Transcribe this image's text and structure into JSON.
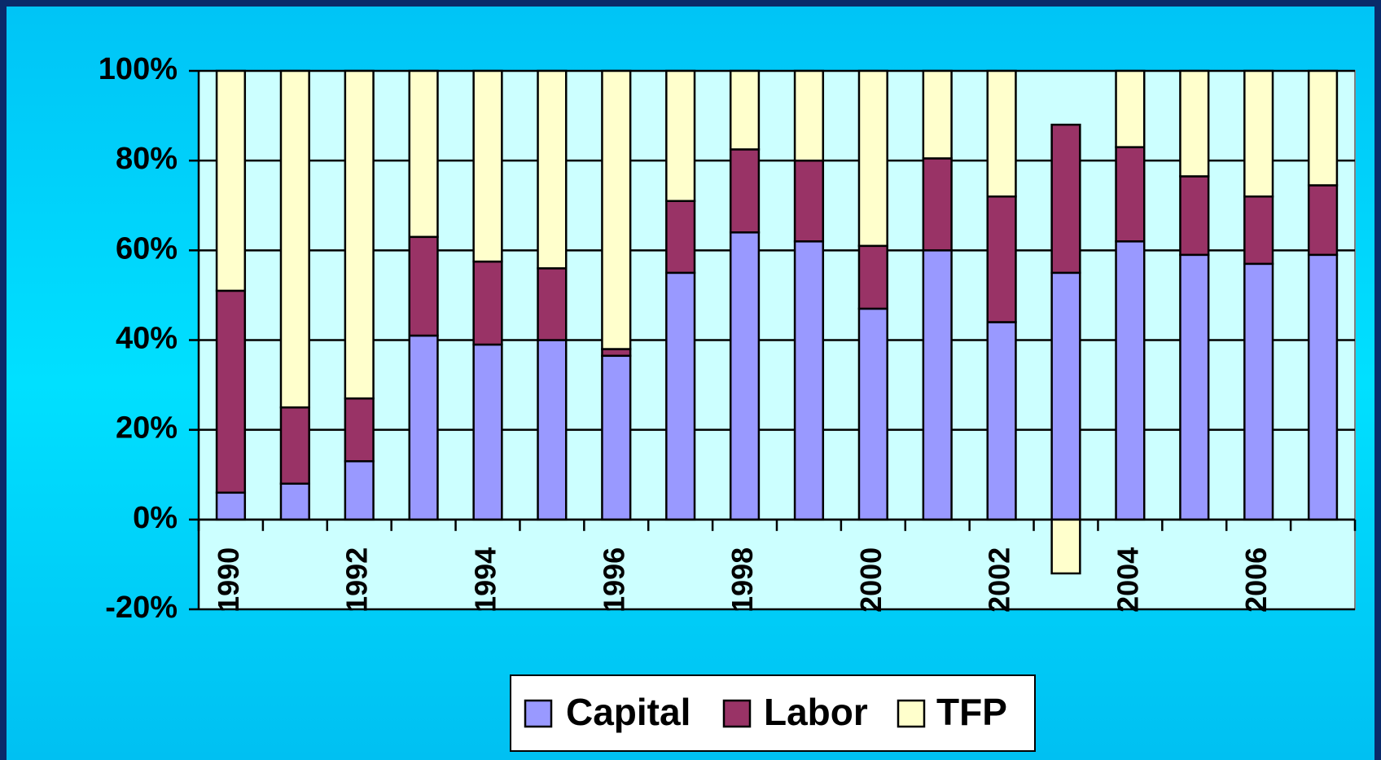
{
  "chart_data": {
    "type": "bar",
    "stacked": true,
    "categories": [
      "1990",
      null,
      "1992",
      null,
      "1994",
      null,
      "1996",
      null,
      "1998",
      null,
      "2000",
      null,
      "2002",
      null,
      "2004",
      null,
      "2006",
      null
    ],
    "series": [
      {
        "name": "Capital",
        "color": "#9999ff",
        "values": [
          6,
          8,
          13,
          41,
          39,
          40,
          36.5,
          55,
          64,
          62,
          47,
          60,
          44,
          55,
          62,
          59,
          57,
          59
        ]
      },
      {
        "name": "Labor",
        "color": "#993366",
        "values": [
          45,
          17,
          14,
          22,
          18.5,
          16,
          1.5,
          16,
          18.5,
          18,
          14,
          20.5,
          28,
          33,
          21,
          17.5,
          15,
          15.5
        ]
      },
      {
        "name": "TFP",
        "color": "#ffffcc",
        "values": [
          49,
          75,
          73,
          37,
          42.5,
          44,
          62,
          29,
          17.5,
          20,
          39,
          19.5,
          28,
          -12,
          17,
          23.5,
          28,
          25.5
        ]
      }
    ],
    "ylim": [
      -20,
      100
    ],
    "yticks": [
      {
        "value": -20,
        "label": "-20%"
      },
      {
        "value": 0,
        "label": "0%"
      },
      {
        "value": 20,
        "label": "20%"
      },
      {
        "value": 40,
        "label": "40%"
      },
      {
        "value": 60,
        "label": "60%"
      },
      {
        "value": 80,
        "label": "80%"
      },
      {
        "value": 100,
        "label": "100%"
      }
    ],
    "grid": true,
    "legend": "bottom"
  }
}
